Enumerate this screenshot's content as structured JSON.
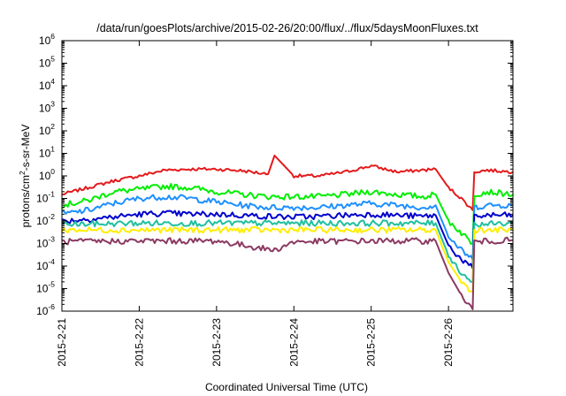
{
  "chart_data": {
    "type": "line",
    "title": "/data/run/goesPlots/archive/2015-02-26/20:00/flux/../flux/5daysMoonFluxes.txt",
    "xlabel": "Coordinated Universal Time (UTC)",
    "ylabel_base": "protons/cm",
    "ylabel_sup": "2",
    "ylabel_rest": "-s-sr-MeV",
    "y_scale": "log",
    "ylim": [
      1e-06,
      1000000.0
    ],
    "xlim": [
      "2015-02-21T00:00",
      "2015-02-26T20:00"
    ],
    "grid": false,
    "legend": "none",
    "y_ticks": [
      {
        "base": "10",
        "exp": "-6",
        "value": 1e-06
      },
      {
        "base": "10",
        "exp": "-5",
        "value": 1e-05
      },
      {
        "base": "10",
        "exp": "-4",
        "value": 0.0001
      },
      {
        "base": "10",
        "exp": "-3",
        "value": 0.001
      },
      {
        "base": "10",
        "exp": "-2",
        "value": 0.01
      },
      {
        "base": "10",
        "exp": "-1",
        "value": 0.1
      },
      {
        "base": "10",
        "exp": "0",
        "value": 1
      },
      {
        "base": "10",
        "exp": "1",
        "value": 10
      },
      {
        "base": "10",
        "exp": "2",
        "value": 100
      },
      {
        "base": "10",
        "exp": "3",
        "value": 1000
      },
      {
        "base": "10",
        "exp": "4",
        "value": 10000
      },
      {
        "base": "10",
        "exp": "5",
        "value": 100000
      },
      {
        "base": "10",
        "exp": "6",
        "value": 1000000
      }
    ],
    "x_ticks": [
      {
        "label": "2015-2-21",
        "value": "2015-02-21T00:00"
      },
      {
        "label": "2015-2-22",
        "value": "2015-02-22T00:00"
      },
      {
        "label": "2015-2-23",
        "value": "2015-02-23T00:00"
      },
      {
        "label": "2015-2-24",
        "value": "2015-02-24T00:00"
      },
      {
        "label": "2015-2-25",
        "value": "2015-02-25T00:00"
      },
      {
        "label": "2015-2-26",
        "value": "2015-02-26T00:00"
      }
    ],
    "series": [
      {
        "color": "#e41a1c",
        "x": [
          "2015-02-21T00:00",
          "2015-02-21T08:00",
          "2015-02-21T16:00",
          "2015-02-22T00:00",
          "2015-02-22T08:00",
          "2015-02-22T16:00",
          "2015-02-23T00:00",
          "2015-02-23T08:00",
          "2015-02-23T16:00",
          "2015-02-23T18:00",
          "2015-02-24T00:00",
          "2015-02-24T08:00",
          "2015-02-24T16:00",
          "2015-02-25T00:00",
          "2015-02-25T08:00",
          "2015-02-25T16:00",
          "2015-02-25T20:00",
          "2015-02-26T00:00",
          "2015-02-26T04:00",
          "2015-02-26T07:30",
          "2015-02-26T08:00",
          "2015-02-26T12:00",
          "2015-02-26T20:00"
        ],
        "y": [
          0.15,
          0.3,
          0.6,
          1.0,
          1.8,
          2.0,
          2.0,
          1.7,
          1.2,
          8.0,
          1.0,
          1.0,
          1.5,
          2.8,
          1.5,
          1.8,
          2.0,
          0.3,
          0.1,
          0.03,
          1.5,
          1.8,
          1.5
        ]
      },
      {
        "color": "#00ee00",
        "x": [
          "2015-02-21T00:00",
          "2015-02-21T08:00",
          "2015-02-21T16:00",
          "2015-02-22T00:00",
          "2015-02-22T08:00",
          "2015-02-22T16:00",
          "2015-02-23T00:00",
          "2015-02-23T08:00",
          "2015-02-23T16:00",
          "2015-02-24T00:00",
          "2015-02-24T08:00",
          "2015-02-24T16:00",
          "2015-02-25T00:00",
          "2015-02-25T08:00",
          "2015-02-25T16:00",
          "2015-02-25T20:00",
          "2015-02-26T00:00",
          "2015-02-26T04:00",
          "2015-02-26T07:30",
          "2015-02-26T08:00",
          "2015-02-26T12:00",
          "2015-02-26T20:00"
        ],
        "y": [
          0.05,
          0.08,
          0.2,
          0.25,
          0.35,
          0.3,
          0.2,
          0.15,
          0.12,
          0.12,
          0.12,
          0.15,
          0.2,
          0.15,
          0.12,
          0.15,
          0.01,
          0.003,
          0.001,
          0.15,
          0.2,
          0.15
        ]
      },
      {
        "color": "#1e90ff",
        "x": [
          "2015-02-21T00:00",
          "2015-02-21T08:00",
          "2015-02-21T16:00",
          "2015-02-22T00:00",
          "2015-02-22T08:00",
          "2015-02-22T16:00",
          "2015-02-23T00:00",
          "2015-02-23T08:00",
          "2015-02-23T16:00",
          "2015-02-24T00:00",
          "2015-02-24T08:00",
          "2015-02-24T16:00",
          "2015-02-25T00:00",
          "2015-02-25T08:00",
          "2015-02-25T16:00",
          "2015-02-25T20:00",
          "2015-02-26T00:00",
          "2015-02-26T04:00",
          "2015-02-26T07:30",
          "2015-02-26T08:00",
          "2015-02-26T12:00",
          "2015-02-26T20:00"
        ],
        "y": [
          0.02,
          0.03,
          0.06,
          0.1,
          0.12,
          0.1,
          0.07,
          0.05,
          0.04,
          0.04,
          0.04,
          0.05,
          0.06,
          0.05,
          0.04,
          0.05,
          0.002,
          0.0005,
          0.0002,
          0.04,
          0.05,
          0.05
        ]
      },
      {
        "color": "#0000cd",
        "x": [
          "2015-02-21T00:00",
          "2015-02-21T08:00",
          "2015-02-21T16:00",
          "2015-02-22T00:00",
          "2015-02-22T08:00",
          "2015-02-22T16:00",
          "2015-02-23T00:00",
          "2015-02-23T08:00",
          "2015-02-23T16:00",
          "2015-02-24T00:00",
          "2015-02-24T08:00",
          "2015-02-24T16:00",
          "2015-02-25T00:00",
          "2015-02-25T08:00",
          "2015-02-25T16:00",
          "2015-02-25T20:00",
          "2015-02-26T00:00",
          "2015-02-26T04:00",
          "2015-02-26T07:30",
          "2015-02-26T08:00",
          "2015-02-26T12:00",
          "2015-02-26T20:00"
        ],
        "y": [
          0.01,
          0.012,
          0.015,
          0.02,
          0.022,
          0.02,
          0.02,
          0.018,
          0.016,
          0.015,
          0.016,
          0.018,
          0.02,
          0.018,
          0.016,
          0.018,
          0.0008,
          0.0002,
          8e-05,
          0.015,
          0.018,
          0.018
        ]
      },
      {
        "color": "#20c0a0",
        "x": [
          "2015-02-21T00:00",
          "2015-02-22T00:00",
          "2015-02-23T00:00",
          "2015-02-24T00:00",
          "2015-02-25T00:00",
          "2015-02-25T20:00",
          "2015-02-26T00:00",
          "2015-02-26T04:00",
          "2015-02-26T07:30",
          "2015-02-26T08:00",
          "2015-02-26T20:00"
        ],
        "y": [
          0.007,
          0.008,
          0.008,
          0.008,
          0.008,
          0.008,
          0.0003,
          5e-05,
          2e-05,
          0.007,
          0.008
        ]
      },
      {
        "color": "#ffee00",
        "x": [
          "2015-02-21T00:00",
          "2015-02-22T00:00",
          "2015-02-23T00:00",
          "2015-02-24T00:00",
          "2015-02-25T00:00",
          "2015-02-25T20:00",
          "2015-02-26T00:00",
          "2015-02-26T04:00",
          "2015-02-26T07:30",
          "2015-02-26T08:00",
          "2015-02-26T20:00"
        ],
        "y": [
          0.004,
          0.004,
          0.004,
          0.004,
          0.004,
          0.004,
          0.00015,
          2e-05,
          7e-06,
          0.004,
          0.004
        ]
      },
      {
        "color": "#8b3a62",
        "x": [
          "2015-02-21T00:00",
          "2015-02-22T00:00",
          "2015-02-23T00:00",
          "2015-02-23T18:00",
          "2015-02-24T00:00",
          "2015-02-25T00:00",
          "2015-02-25T20:00",
          "2015-02-26T00:00",
          "2015-02-26T04:00",
          "2015-02-26T07:30",
          "2015-02-26T08:00",
          "2015-02-26T20:00"
        ],
        "y": [
          0.0012,
          0.0013,
          0.0013,
          0.0005,
          0.0012,
          0.0013,
          0.0013,
          5e-05,
          5e-06,
          1.2e-06,
          0.0012,
          0.0014
        ]
      }
    ]
  }
}
